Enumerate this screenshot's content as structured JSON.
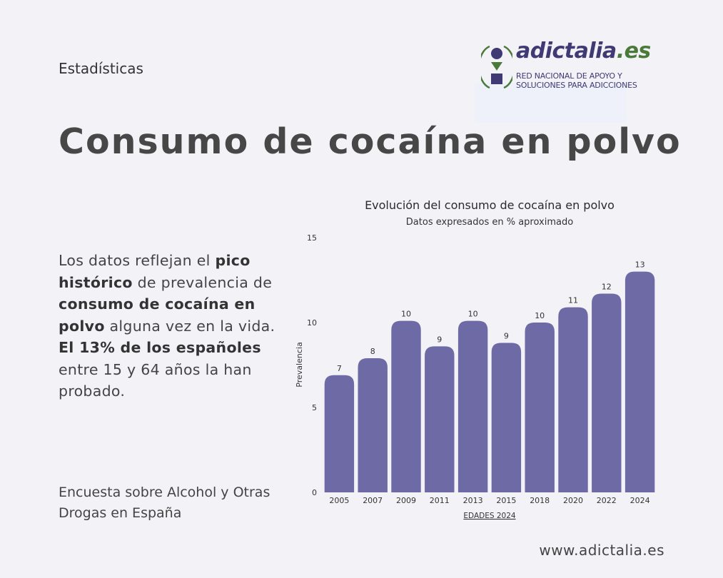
{
  "header": {
    "section_label": "Estadísticas",
    "logo": {
      "brand": "adictalia",
      "tld": ".es",
      "tagline_1": "RED NACIONAL DE APOYO Y",
      "tagline_2": "SOLUCIONES PARA ADICCIONES",
      "colors": {
        "purple": "#3f3a73",
        "green": "#4a7a3a"
      }
    }
  },
  "title": "Consumo de cocaína en polvo",
  "description": {
    "segments": [
      {
        "text": "Los datos reflejan el ",
        "bold": false
      },
      {
        "text": "pico histórico",
        "bold": true
      },
      {
        "text": " de prevalencia de ",
        "bold": false
      },
      {
        "text": "consumo de cocaína en polvo",
        "bold": true
      },
      {
        "text": " alguna vez en la vida. ",
        "bold": false
      },
      {
        "text": "El 13% de los españoles",
        "bold": true
      },
      {
        "text": " entre 15 y 64 años la han probado.",
        "bold": false
      }
    ]
  },
  "source": "Encuesta sobre Alcohol y Otras Drogas en España",
  "footer": {
    "url": "www.adictalia.es"
  },
  "chart_data": {
    "type": "bar",
    "title": "Evolución del consumo de cocaína en polvo",
    "subtitle": "Datos expresados en % aproximado",
    "xlabel": "EDADES 2024",
    "ylabel": "Prevalencia",
    "categories": [
      "2005",
      "2007",
      "2009",
      "2011",
      "2013",
      "2015",
      "2018",
      "2020",
      "2022",
      "2024"
    ],
    "values": [
      7,
      8,
      10,
      9,
      10,
      9,
      10,
      11,
      12,
      13
    ],
    "data_labels": [
      "7",
      "8",
      "10",
      "9",
      "10",
      "9",
      "10",
      "11",
      "12",
      "13"
    ],
    "bar_heights_estimated": [
      6.9,
      7.9,
      10.1,
      8.6,
      10.1,
      8.8,
      10.0,
      10.9,
      11.7,
      13.0
    ],
    "ylim": [
      0,
      15
    ],
    "yticks": [
      "0",
      "5",
      "10",
      "15"
    ],
    "grid": false,
    "bar_color": "#6e6aa6"
  }
}
